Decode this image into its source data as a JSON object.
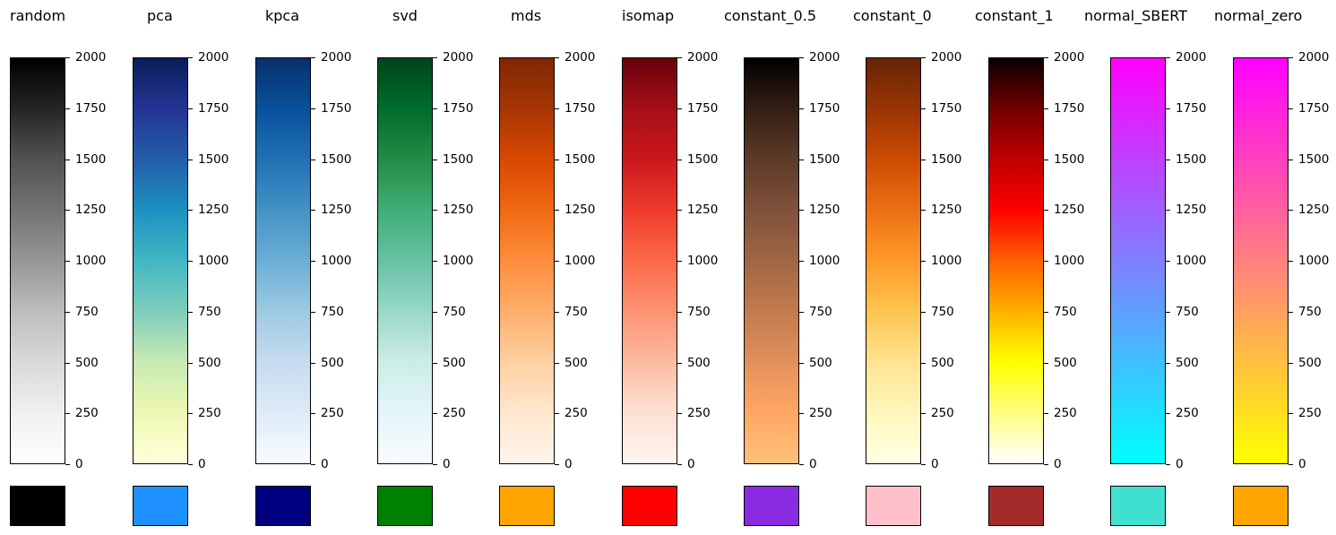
{
  "chart_data": {
    "type": "colorbar",
    "tick_values": [
      0,
      250,
      500,
      750,
      1000,
      1250,
      1500,
      1750,
      2000
    ],
    "range": [
      0,
      2000
    ],
    "panels": [
      {
        "title": "random",
        "gradient": [
          "#ffffff",
          "#f0f0f0",
          "#d9d9d9",
          "#bdbdbd",
          "#969696",
          "#737373",
          "#525252",
          "#252525",
          "#000000"
        ],
        "swatch": "#000000"
      },
      {
        "title": "pca",
        "gradient": [
          "#ffffd9",
          "#edf8b1",
          "#c7e9b4",
          "#7fcdbb",
          "#41b6c4",
          "#1d91c0",
          "#225ea8",
          "#253494",
          "#081d58"
        ],
        "swatch": "#1e90ff"
      },
      {
        "title": "kpca",
        "gradient": [
          "#f7fbff",
          "#deebf7",
          "#c6dbef",
          "#9ecae1",
          "#6baed6",
          "#4292c6",
          "#2171b5",
          "#08519c",
          "#08306b"
        ],
        "swatch": "#000080"
      },
      {
        "title": "svd",
        "gradient": [
          "#f7fcfd",
          "#e5f5f9",
          "#ccece6",
          "#99d8c9",
          "#66c2a4",
          "#41ae76",
          "#238b45",
          "#006d2c",
          "#00441b"
        ],
        "swatch": "#008000"
      },
      {
        "title": "mds",
        "gradient": [
          "#fff5eb",
          "#fee6ce",
          "#fdd0a2",
          "#fdae6b",
          "#fd8d3c",
          "#f16913",
          "#d94801",
          "#a63603",
          "#7f2704"
        ],
        "swatch": "#ffa500"
      },
      {
        "title": "isomap",
        "gradient": [
          "#fff5f0",
          "#fee0d2",
          "#fcbba1",
          "#fc9272",
          "#fb6a4a",
          "#ef3b2c",
          "#cb181d",
          "#a50f15",
          "#67000d"
        ],
        "swatch": "#ff0000"
      },
      {
        "title": "constant_0.5",
        "gradient": [
          "#ffc17a",
          "#ffa764",
          "#e3905a",
          "#c27b4f",
          "#a06645",
          "#80513a",
          "#5c3b29",
          "#351f14",
          "#000000"
        ],
        "swatch": "#8a2be2"
      },
      {
        "title": "constant_0",
        "gradient": [
          "#ffffe5",
          "#fff7bc",
          "#fee391",
          "#fec44f",
          "#fe9929",
          "#ec7014",
          "#cc4c02",
          "#993404",
          "#662506"
        ],
        "swatch": "#ffc0cb"
      },
      {
        "title": "constant_1",
        "gradient": [
          "#ffffff",
          "#ffff80",
          "#ffff00",
          "#ffb000",
          "#ff6000",
          "#ff0000",
          "#c00000",
          "#700000",
          "#0b0000"
        ],
        "swatch": "#a52a2a"
      },
      {
        "title": "normal_SBERT",
        "gradient": [
          "#00ffff",
          "#20dfff",
          "#40bfff",
          "#609fff",
          "#807fff",
          "#9f60ff",
          "#bf40ff",
          "#df20ff",
          "#ff00ff"
        ],
        "swatch": "#40e0d0"
      },
      {
        "title": "normal_zero",
        "gradient": [
          "#ffff00",
          "#ffdf20",
          "#ffbf40",
          "#ff9f60",
          "#ff7f80",
          "#ff609f",
          "#ff40bf",
          "#ff20df",
          "#ff00ff"
        ],
        "swatch": "#ffa500"
      }
    ]
  }
}
